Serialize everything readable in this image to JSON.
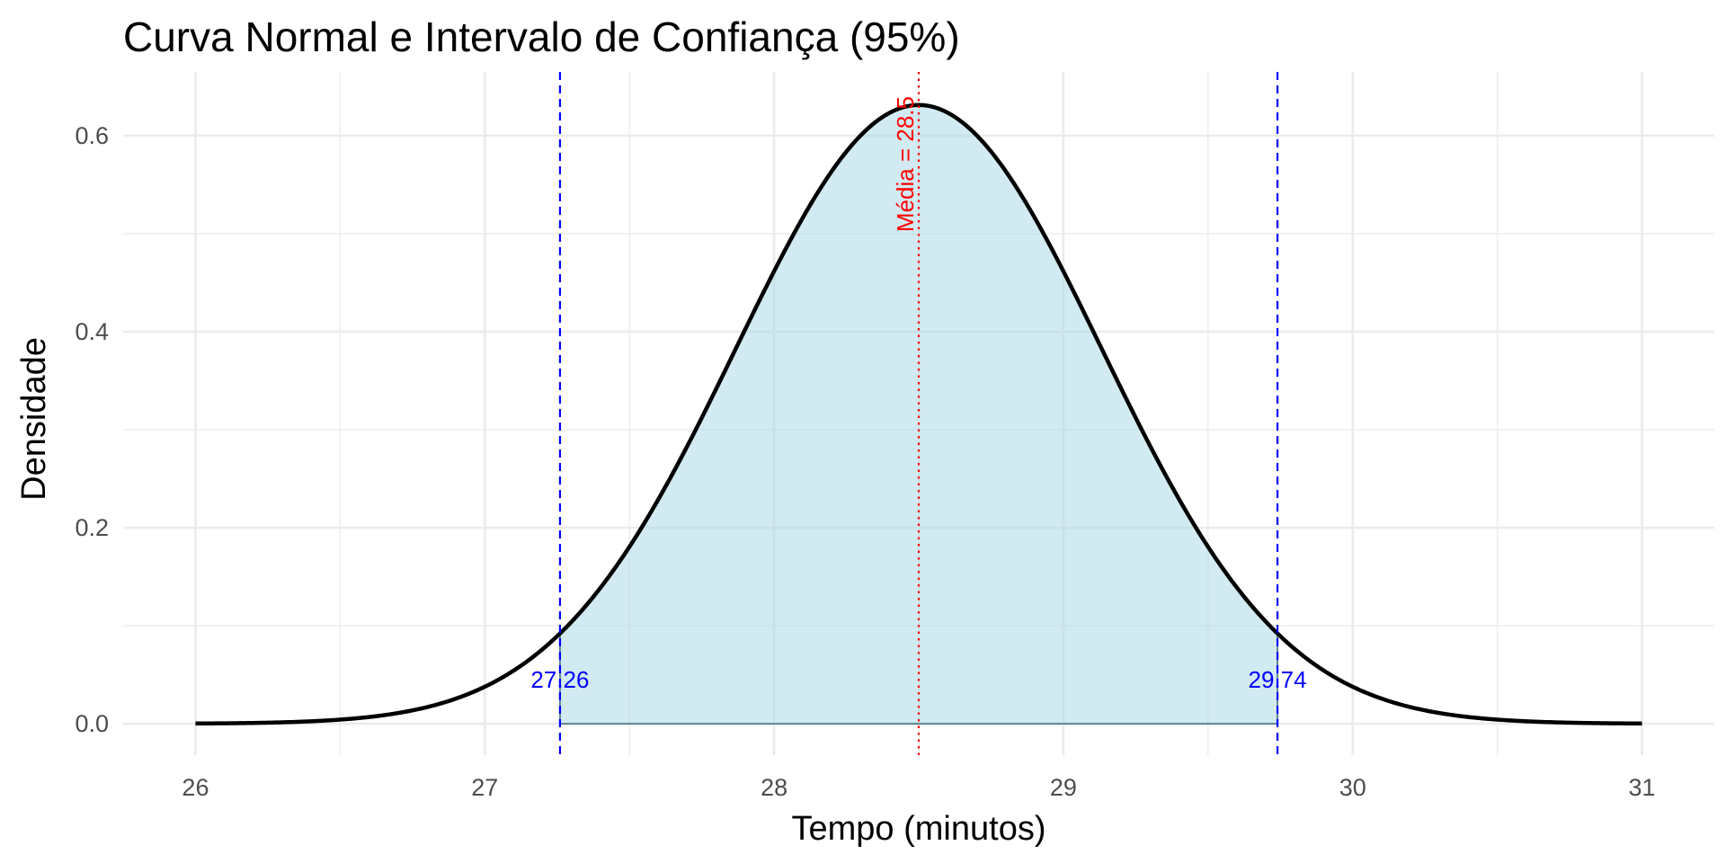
{
  "chart_data": {
    "type": "area",
    "title": "Curva Normal e Intervalo de Confiança (95%)",
    "xlabel": "Tempo (minutos)",
    "ylabel": "Densidade",
    "xlim": [
      25.75,
      31.25
    ],
    "ylim": [
      -0.032,
      0.665
    ],
    "x_ticks": [
      26,
      27,
      28,
      29,
      30,
      31
    ],
    "x_tick_labels": [
      "26",
      "27",
      "28",
      "29",
      "30",
      "31"
    ],
    "y_ticks": [
      0.0,
      0.2,
      0.4,
      0.6
    ],
    "y_tick_labels": [
      "0.0",
      "0.2",
      "0.4",
      "0.6"
    ],
    "x_minor_ticks": [
      26.5,
      27.5,
      28.5,
      29.5,
      30.5
    ],
    "y_minor_ticks": [
      0.1,
      0.3,
      0.5
    ],
    "grid": true,
    "legend": "none",
    "distribution": {
      "mean": 28.5,
      "sd": 0.632,
      "x_range": [
        26,
        31
      ]
    },
    "curve_samples": {
      "x": [
        26.0,
        26.5,
        27.0,
        27.26,
        27.5,
        28.0,
        28.5,
        29.0,
        29.5,
        29.74,
        30.0,
        30.5,
        31.0
      ],
      "y": [
        0.0026,
        0.0117,
        0.0377,
        0.0925,
        0.1811,
        0.4609,
        0.6312,
        0.4609,
        0.1811,
        0.0925,
        0.0377,
        0.0117,
        0.0026
      ]
    },
    "confidence_interval": {
      "lower": 27.26,
      "upper": 29.74,
      "level": "95%"
    },
    "annotations": {
      "lower_label": "27.26",
      "upper_label": "29.74",
      "mean_label": "Média = 28.5"
    },
    "colors": {
      "curve": "#000000",
      "fill": "#add8e6",
      "ci_lines": "#0000ff",
      "mean_line": "#ff0000",
      "grid": "#ebebeb",
      "tick_text": "#4d4d4d"
    }
  }
}
